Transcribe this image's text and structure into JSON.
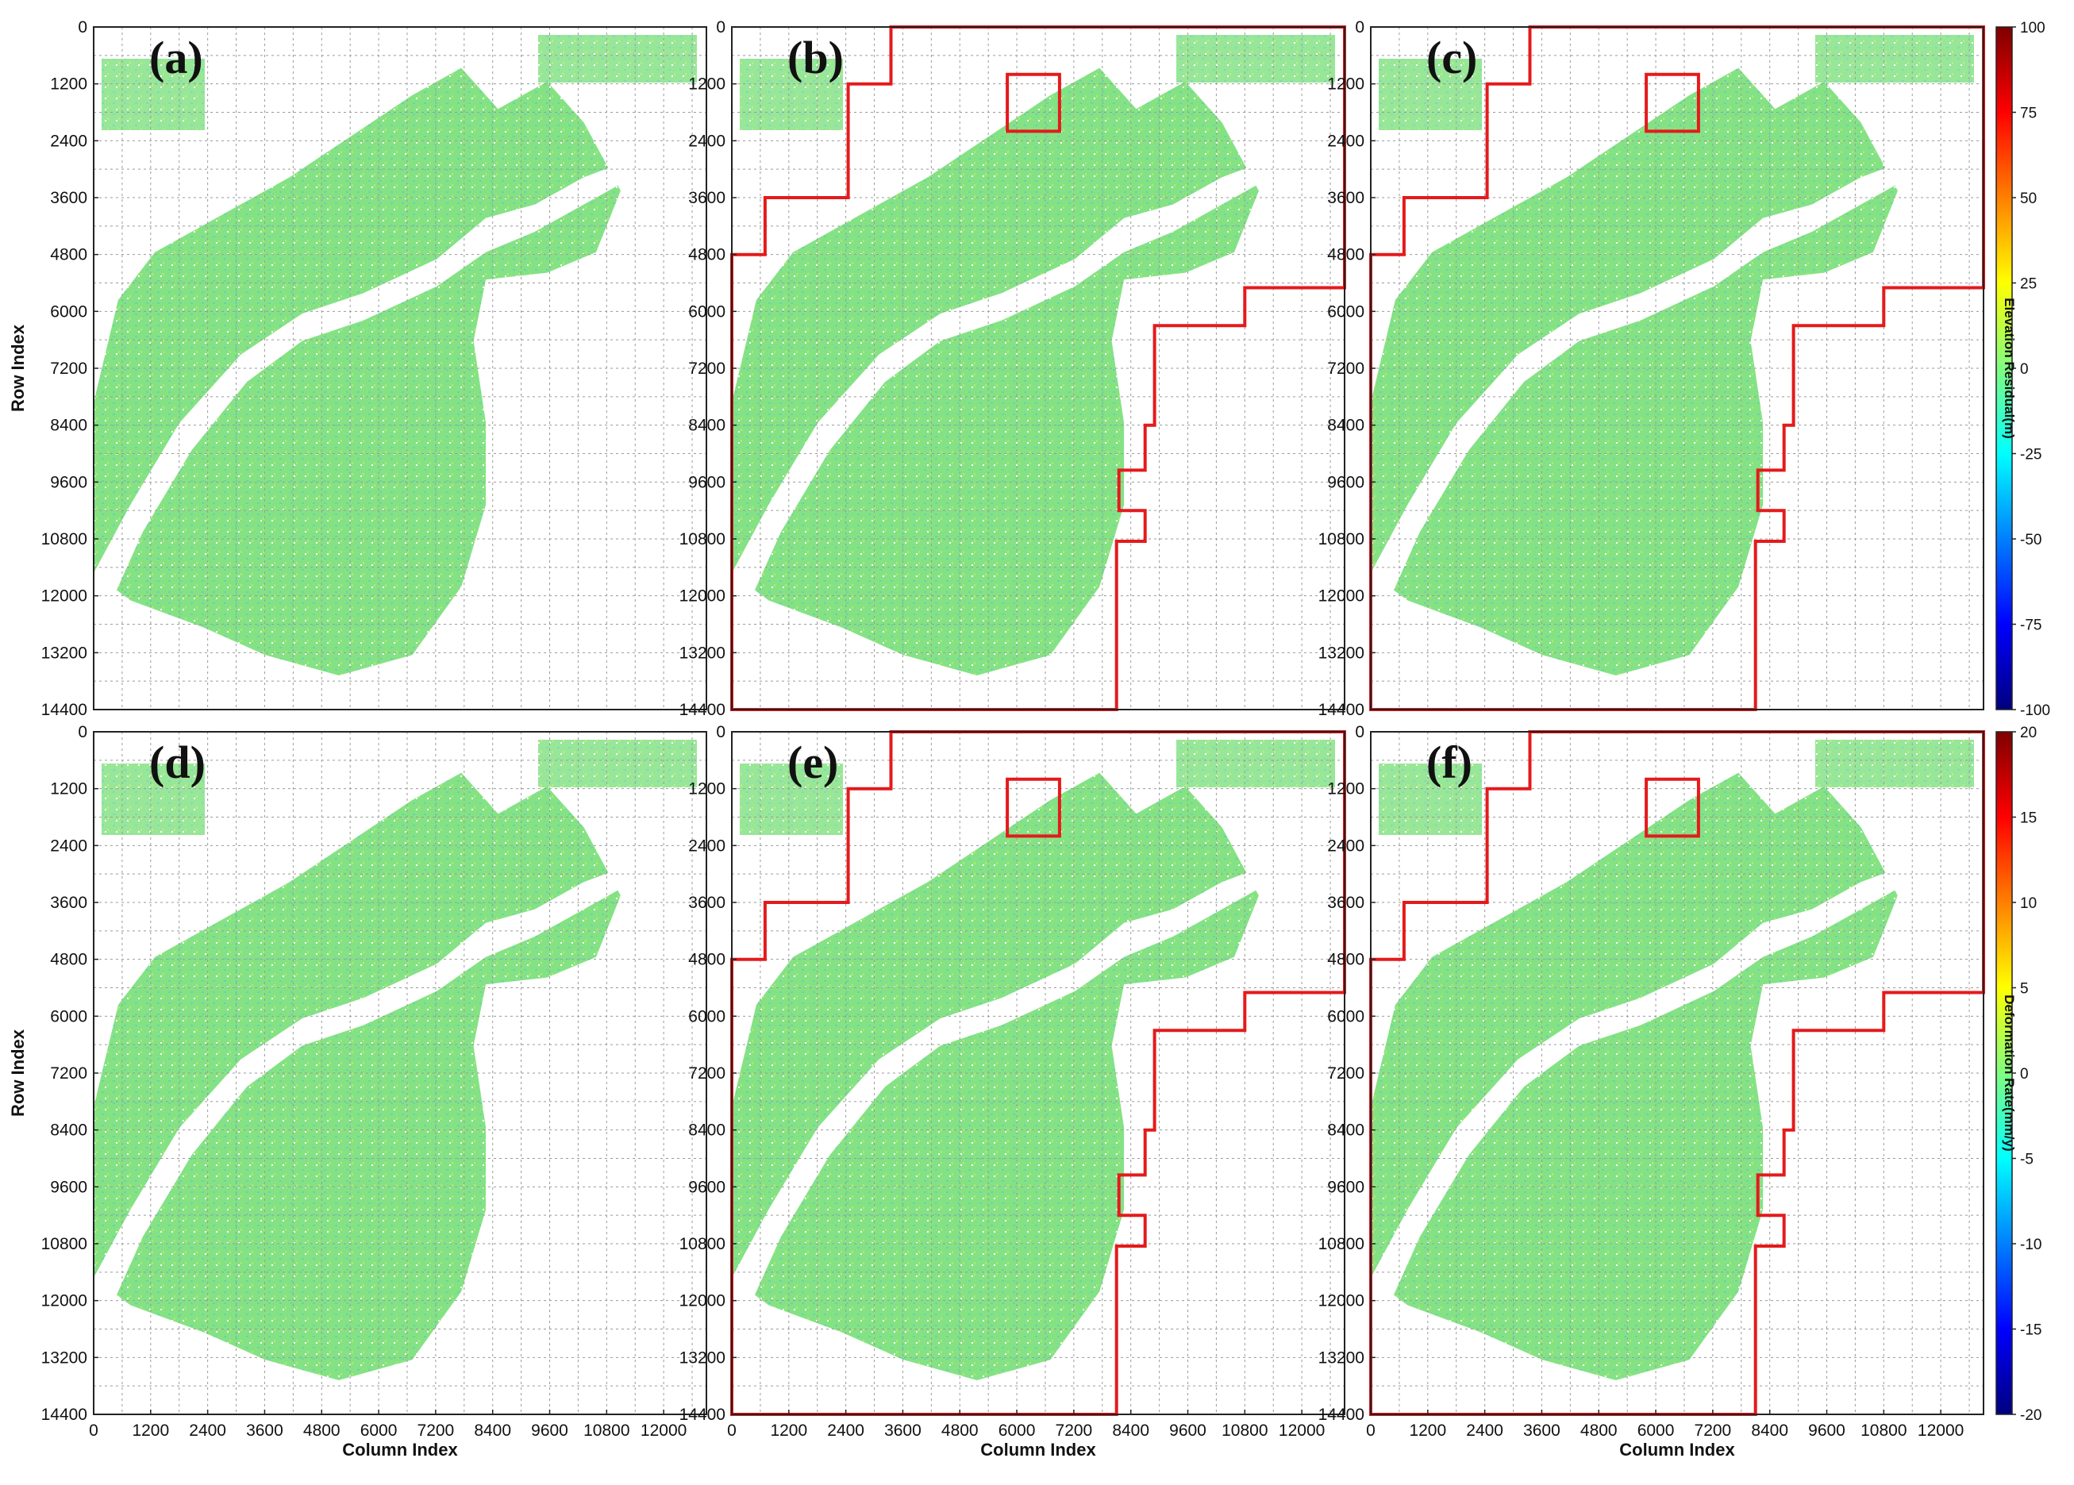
{
  "figure": {
    "panels": [
      {
        "label": "(a)",
        "group": "elevation",
        "boundary": false
      },
      {
        "label": "(b)",
        "group": "elevation",
        "boundary": true
      },
      {
        "label": "(c)",
        "group": "elevation",
        "boundary": true
      },
      {
        "label": "(d)",
        "group": "deformation",
        "boundary": false
      },
      {
        "label": "(e)",
        "group": "deformation",
        "boundary": true
      },
      {
        "label": "(f)",
        "group": "deformation",
        "boundary": true
      }
    ]
  },
  "chart_data": {
    "type": "heatmap",
    "xlabel": "Column Index",
    "ylabel": "Row Index",
    "x_ticks": [
      "0",
      "1200",
      "2400",
      "3600",
      "4800",
      "6000",
      "7200",
      "8400",
      "9600",
      "10800",
      "12000"
    ],
    "y_ticks": [
      "0",
      "1200",
      "2400",
      "3600",
      "4800",
      "6000",
      "7200",
      "8400",
      "9600",
      "10800",
      "12000",
      "13200",
      "14400"
    ],
    "xlim": [
      0,
      12900
    ],
    "ylim": [
      0,
      14400
    ],
    "grid": true,
    "colorbars": [
      {
        "label": "Elevation Residual(m)",
        "ticks": [
          "100",
          "75",
          "50",
          "25",
          "0",
          "-25",
          "-50",
          "-75",
          "-100"
        ],
        "range": [
          -100,
          100
        ],
        "colormap": "jet"
      },
      {
        "label": "Deformation Rate(mm/y)",
        "ticks": [
          "20",
          "15",
          "10",
          "5",
          "0",
          "-5",
          "-10",
          "-15",
          "-20"
        ],
        "range": [
          -20,
          20
        ],
        "colormap": "jet"
      }
    ],
    "boundary_outline_color": "#e41a1c",
    "boundary_polygon": [
      [
        8100,
        14400
      ],
      [
        8100,
        10850
      ],
      [
        8700,
        10850
      ],
      [
        8700,
        10200
      ],
      [
        8150,
        10200
      ],
      [
        8150,
        9350
      ],
      [
        8700,
        9350
      ],
      [
        8700,
        8400
      ],
      [
        8900,
        8400
      ],
      [
        8900,
        6300
      ],
      [
        10800,
        6300
      ],
      [
        10800,
        5500
      ],
      [
        12900,
        5500
      ],
      [
        12900,
        0
      ],
      [
        3350,
        0
      ],
      [
        3350,
        1200
      ],
      [
        2450,
        1200
      ],
      [
        2450,
        3600
      ],
      [
        700,
        3600
      ],
      [
        700,
        4800
      ],
      [
        0,
        4800
      ],
      [
        0,
        14400
      ]
    ],
    "boundary_inner_box": [
      [
        5800,
        1000
      ],
      [
        6900,
        1000
      ],
      [
        6900,
        2200
      ],
      [
        5800,
        2200
      ]
    ]
  },
  "colors": {
    "background": "#ffffff",
    "land": "#7ee07e",
    "boundary": "#e41a1c"
  }
}
